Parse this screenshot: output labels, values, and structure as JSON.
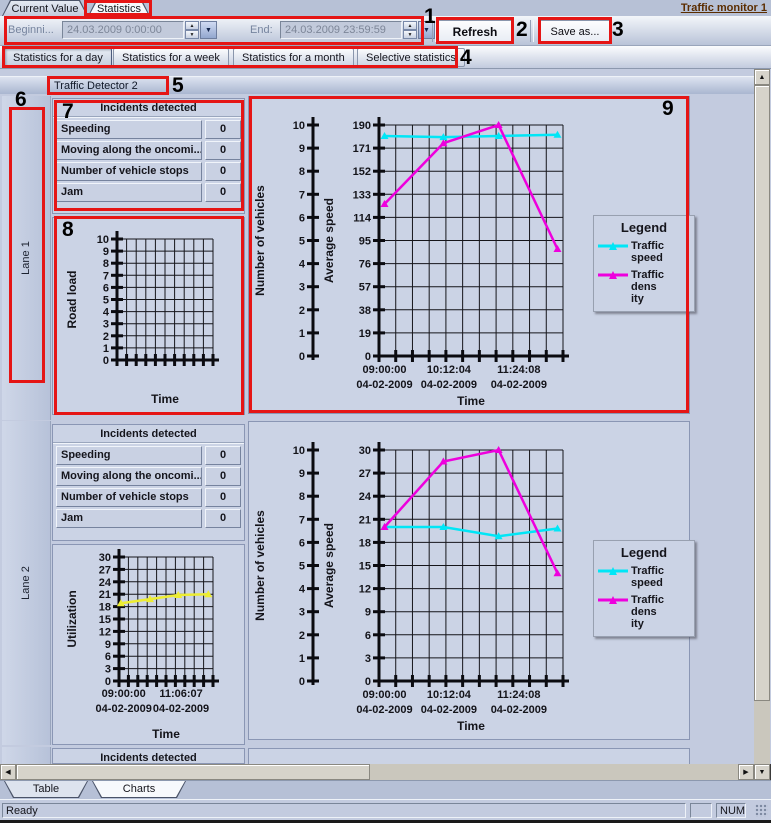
{
  "window": {
    "top_tabs": [
      {
        "label": "Current Value",
        "active": false
      },
      {
        "label": "Statistics",
        "active": true
      }
    ],
    "monitor_link": "Traffic monitor 1"
  },
  "toolbar": {
    "begin_label": "Beginni...",
    "begin_value": "24.03.2009 0:00:00",
    "end_label": "End:",
    "end_value": "24.03.2009 23:59:59",
    "refresh_label": "Refresh",
    "save_as_label": "Save as..."
  },
  "stat_tabs": [
    {
      "label": "Statistics for a day",
      "active": true
    },
    {
      "label": "Statistics for a week",
      "active": false
    },
    {
      "label": "Statistics for a month",
      "active": false
    },
    {
      "label": "Selective statistics",
      "active": false
    }
  ],
  "detector_title": "Traffic Detector 2",
  "lanes": [
    {
      "label": "Lane 1"
    },
    {
      "label": "Lane 2"
    }
  ],
  "incidents": {
    "header": "Incidents detected",
    "rows": [
      {
        "label": "Speeding",
        "value": "0"
      },
      {
        "label": "Moving along the oncomi...",
        "value": "0"
      },
      {
        "label": "Number of vehicle stops",
        "value": "0"
      },
      {
        "label": "Jam",
        "value": "0"
      }
    ]
  },
  "legend": {
    "title": "Legend",
    "items": [
      {
        "lines": [
          "Traffic speed"
        ],
        "color": "#00e6f6"
      },
      {
        "lines": [
          "Traffic dens",
          "ity"
        ],
        "color": "#ee00dd"
      }
    ]
  },
  "bottom_tabs": [
    {
      "label": "Table",
      "active": false
    },
    {
      "label": "Charts",
      "active": true
    }
  ],
  "status_bar": {
    "ready": "Ready",
    "num": "NUM"
  },
  "annotations": [
    "1",
    "2",
    "3",
    "4",
    "5",
    "6",
    "7",
    "8",
    "9"
  ],
  "chart_data": [
    {
      "type": "line",
      "lane": "Lane 1",
      "layout": {
        "variant": "small",
        "grid": true
      },
      "y_axis": {
        "label": "Road load",
        "max": 10,
        "step": 1
      },
      "x_axis": {
        "label": "Time",
        "ticks": []
      },
      "series": []
    },
    {
      "type": "line",
      "lane": "Lane 1",
      "layout": {
        "variant": "dual",
        "grid": true,
        "legend": "right"
      },
      "outer_axis": {
        "label": "Number of vehicles",
        "max": 10,
        "step": 1
      },
      "y_axis": {
        "label": "Average speed",
        "max": 190,
        "step": 19
      },
      "x_axis": {
        "label": "Time",
        "ticks": [
          {
            "frac": 0.03,
            "time": "09:00:00",
            "date": "04-02-2009"
          },
          {
            "frac": 0.38,
            "time": "10:12:04",
            "date": "04-02-2009"
          },
          {
            "frac": 0.76,
            "time": "11:24:08",
            "date": "04-02-2009"
          }
        ]
      },
      "series": [
        {
          "name": "Traffic speed",
          "color": "#00e6f6",
          "points": [
            {
              "frac": 0.03,
              "v": 181
            },
            {
              "frac": 0.35,
              "v": 180
            },
            {
              "frac": 0.65,
              "v": 181
            },
            {
              "frac": 0.97,
              "v": 182
            }
          ]
        },
        {
          "name": "Traffic density",
          "color": "#ee00dd",
          "points": [
            {
              "frac": 0.03,
              "v": 125
            },
            {
              "frac": 0.35,
              "v": 175
            },
            {
              "frac": 0.65,
              "v": 190
            },
            {
              "frac": 0.97,
              "v": 88
            }
          ]
        }
      ]
    },
    {
      "type": "line",
      "lane": "Lane 2",
      "layout": {
        "variant": "small",
        "grid": true
      },
      "y_axis": {
        "label": "Utilization",
        "max": 30,
        "step": 3
      },
      "x_axis": {
        "label": "Time",
        "ticks": [
          {
            "frac": 0.05,
            "time": "09:00:00",
            "date": "04-02-2009"
          },
          {
            "frac": 0.66,
            "time": "11:06:07",
            "date": "04-02-2009"
          }
        ]
      },
      "series": [
        {
          "name": "Utilization",
          "color": "#eded33",
          "points": [
            {
              "frac": 0.02,
              "v": 18.8
            },
            {
              "frac": 0.33,
              "v": 19.8
            },
            {
              "frac": 0.63,
              "v": 20.8
            },
            {
              "frac": 0.95,
              "v": 21
            }
          ]
        }
      ]
    },
    {
      "type": "line",
      "lane": "Lane 2",
      "layout": {
        "variant": "dual",
        "grid": true,
        "legend": "right"
      },
      "outer_axis": {
        "label": "Number of vehicles",
        "max": 10,
        "step": 1
      },
      "y_axis": {
        "label": "Average speed",
        "max": 30,
        "step": 3
      },
      "x_axis": {
        "label": "Time",
        "ticks": [
          {
            "frac": 0.03,
            "time": "09:00:00",
            "date": "04-02-2009"
          },
          {
            "frac": 0.38,
            "time": "10:12:04",
            "date": "04-02-2009"
          },
          {
            "frac": 0.76,
            "time": "11:24:08",
            "date": "04-02-2009"
          }
        ]
      },
      "series": [
        {
          "name": "Traffic speed",
          "color": "#00e6f6",
          "points": [
            {
              "frac": 0.03,
              "v": 20
            },
            {
              "frac": 0.35,
              "v": 20
            },
            {
              "frac": 0.65,
              "v": 18.8
            },
            {
              "frac": 0.97,
              "v": 19.8
            }
          ]
        },
        {
          "name": "Traffic density",
          "color": "#ee00dd",
          "points": [
            {
              "frac": 0.03,
              "v": 20
            },
            {
              "frac": 0.35,
              "v": 28.5
            },
            {
              "frac": 0.65,
              "v": 30
            },
            {
              "frac": 0.97,
              "v": 14
            }
          ]
        }
      ]
    }
  ]
}
